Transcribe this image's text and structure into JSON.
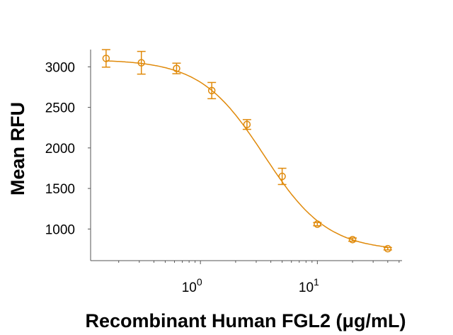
{
  "chart_data": {
    "type": "scatter",
    "title": "",
    "xlabel": "Recombinant Human FGL2 (μg/mL)",
    "ylabel": "Mean RFU",
    "xscale": "log",
    "xlim": [
      0.115,
      53
    ],
    "ylim": [
      610,
      3300
    ],
    "yticks": [
      1000,
      1500,
      2000,
      2500,
      3000
    ],
    "xticks": [
      {
        "value": 1,
        "base": "10",
        "exp": "0"
      },
      {
        "value": 10,
        "base": "10",
        "exp": "1"
      }
    ],
    "grid": false,
    "color": "#E08A0B",
    "marker": "open-circle",
    "series": [
      {
        "x": [
          0.156,
          0.3125,
          0.625,
          1.25,
          2.5,
          5,
          10,
          20,
          40
        ],
        "y": [
          3104,
          3050,
          2980,
          2707,
          2289,
          1649,
          1060,
          869,
          757
        ],
        "error": [
          108,
          140,
          65,
          100,
          60,
          100,
          20,
          20,
          15
        ]
      }
    ],
    "fit": {
      "model": "4PL",
      "bottom": 730,
      "top": 3090,
      "ec50": 3.5,
      "hill": 1.6
    }
  }
}
